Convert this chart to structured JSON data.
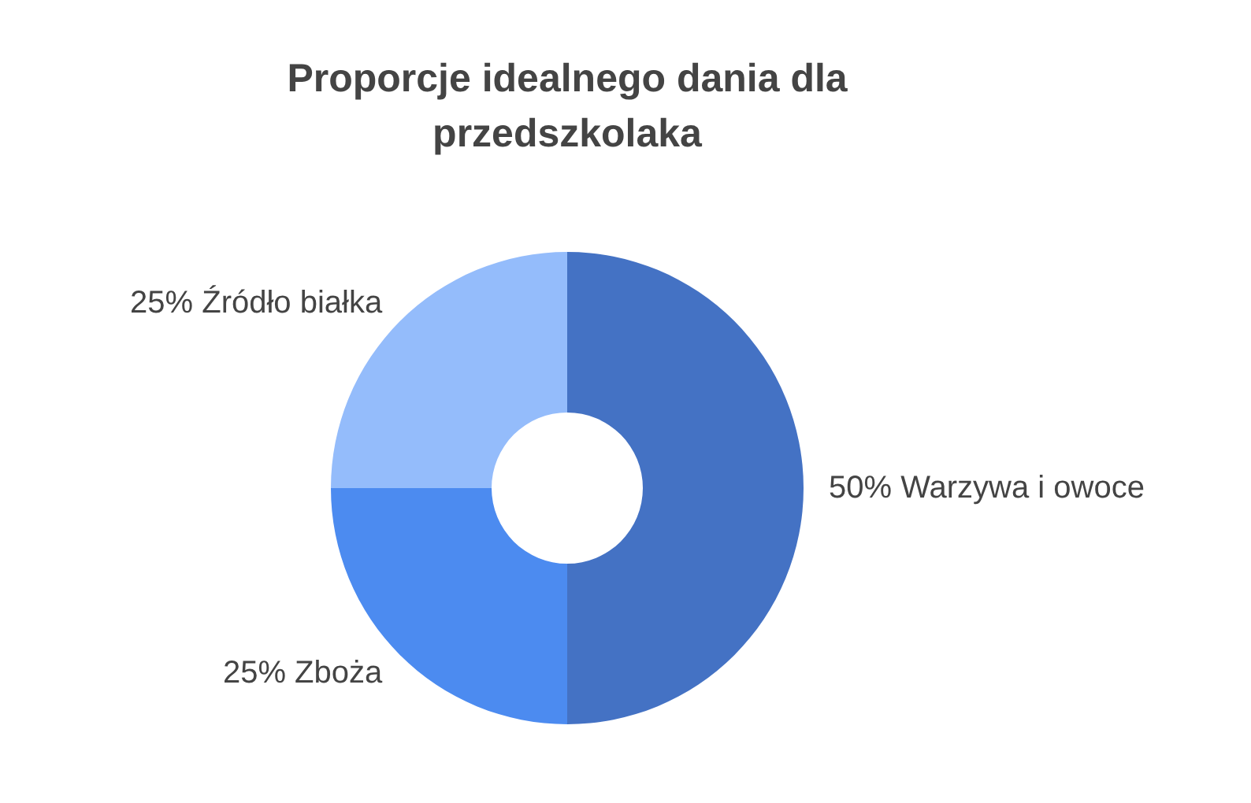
{
  "chart_data": {
    "type": "donut",
    "title": "Proporcje idealnego dania dla przedszkolaka",
    "categories": [
      "Warzywa i owoce",
      "Zboża",
      "Źródło białka"
    ],
    "values": [
      50,
      25,
      25
    ],
    "colors": [
      "#4472c4",
      "#4c8bf0",
      "#94bcfb"
    ],
    "value_labels": [
      "50%",
      "25%",
      "25%"
    ],
    "legend": false
  }
}
